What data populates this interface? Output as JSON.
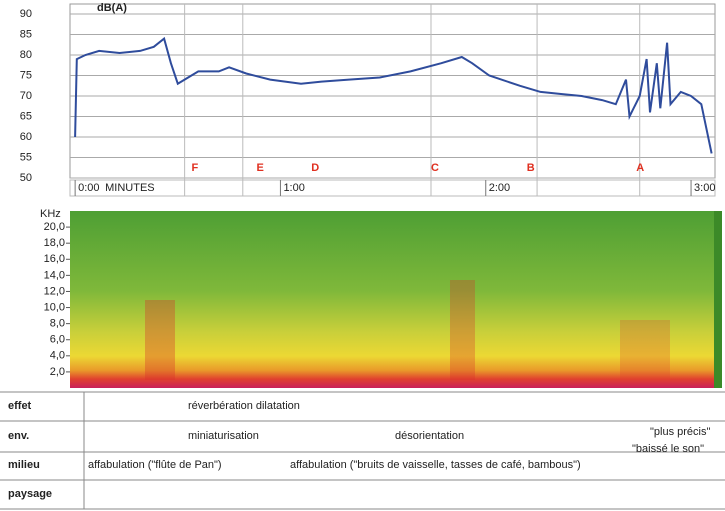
{
  "chart_data": [
    {
      "type": "line",
      "title": "dB(A)",
      "x_label": "MINUTES",
      "color": "#2f4c9c",
      "x": [
        0,
        0.5,
        3,
        7,
        13,
        19,
        23,
        26,
        28,
        30,
        32,
        36,
        42,
        45,
        50,
        57,
        66,
        72,
        80,
        89,
        98,
        107,
        113,
        116,
        121,
        130,
        136,
        142,
        148,
        154,
        158,
        161,
        162,
        165,
        167,
        168,
        170,
        171,
        173,
        174,
        177,
        180,
        183,
        186
      ],
      "values": [
        60,
        79,
        80,
        81,
        80.5,
        81,
        82,
        84,
        78,
        73,
        74,
        76,
        76,
        77,
        75.5,
        74,
        73,
        73.5,
        74,
        74.5,
        76,
        78,
        79.5,
        78,
        75,
        72.5,
        71,
        70.5,
        70,
        69,
        68,
        74,
        65,
        70,
        79,
        66,
        78,
        67,
        83,
        68,
        71,
        70,
        68,
        56
      ],
      "xlim": [
        -1.5,
        187
      ],
      "xticks": [
        {
          "value": 0,
          "label": "0:00"
        },
        {
          "value": 60,
          "label": "1:00"
        },
        {
          "value": 120,
          "label": "2:00"
        },
        {
          "value": 180,
          "label": "3:00"
        }
      ],
      "ylim": [
        50,
        90
      ],
      "yticks": [
        50,
        55,
        60,
        65,
        70,
        75,
        80,
        85,
        90
      ],
      "grid": true,
      "dividers": [
        32,
        49,
        104,
        135,
        165
      ],
      "annotations": [
        {
          "text": "F",
          "x": 34
        },
        {
          "text": "E",
          "x": 53
        },
        {
          "text": "D",
          "x": 69
        },
        {
          "text": "C",
          "x": 104
        },
        {
          "text": "B",
          "x": 132
        },
        {
          "text": "A",
          "x": 164
        }
      ]
    },
    {
      "type": "spectrogram",
      "y_label": "KHz",
      "ylim": [
        0,
        22
      ],
      "yticks": [
        {
          "value": 2,
          "label": "2,0"
        },
        {
          "value": 4,
          "label": "4,0"
        },
        {
          "value": 6,
          "label": "6,0"
        },
        {
          "value": 8,
          "label": "8,0"
        },
        {
          "value": 10,
          "label": "10,0"
        },
        {
          "value": 12,
          "label": "12,0"
        },
        {
          "value": 14,
          "label": "14,0"
        },
        {
          "value": 16,
          "label": "16,0"
        },
        {
          "value": 18,
          "label": "18,0"
        },
        {
          "value": 20,
          "label": "20,0"
        }
      ]
    }
  ],
  "table": {
    "rows": [
      {
        "label": "effet",
        "cells": [
          "réverbération dilatation"
        ]
      },
      {
        "label": "env.",
        "cells": [
          "miniaturisation",
          "désorientation",
          "\"plus précis\"",
          "\"baissé le son\""
        ]
      },
      {
        "label": "milieu",
        "cells": [
          "affabulation (\"flûte de Pan\")",
          "affabulation (\"bruits de vaisselle, tasses de café, bambous\")"
        ]
      },
      {
        "label": "paysage",
        "cells": []
      }
    ]
  }
}
